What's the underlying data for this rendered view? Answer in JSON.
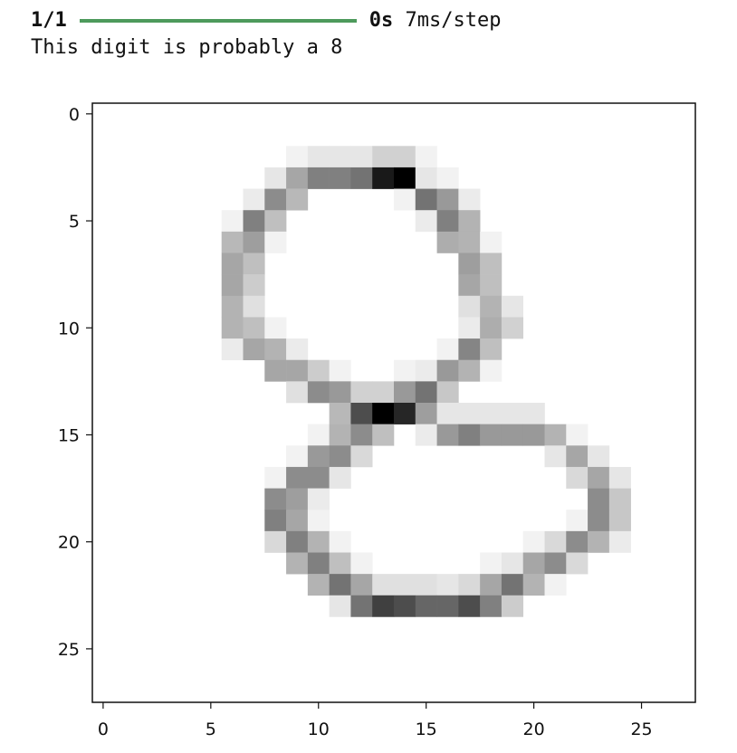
{
  "console": {
    "step_count": "1/1",
    "progress": 1.0,
    "elapsed": "0s",
    "step_time": "7ms/step",
    "message": "This digit is probably a 8"
  },
  "chart_data": {
    "type": "heatmap",
    "colormap": "gray_r",
    "xlim": [
      -0.5,
      27.5
    ],
    "ylim": [
      27.5,
      -0.5
    ],
    "xticks": [
      0,
      5,
      10,
      15,
      20,
      25
    ],
    "yticks": [
      0,
      5,
      10,
      15,
      20,
      25
    ],
    "xtick_labels": [
      "0",
      "5",
      "10",
      "15",
      "20",
      "25"
    ],
    "ytick_labels": [
      "0",
      "5",
      "10",
      "15",
      "20",
      "25"
    ],
    "xlabel": "",
    "ylabel": "",
    "title": "",
    "grid": false,
    "rows": 28,
    "cols": 28,
    "pixels": [
      {
        "r": 2,
        "c": 9,
        "v": 0.05
      },
      {
        "r": 2,
        "c": 10,
        "v": 0.1
      },
      {
        "r": 2,
        "c": 11,
        "v": 0.1
      },
      {
        "r": 2,
        "c": 12,
        "v": 0.1
      },
      {
        "r": 2,
        "c": 13,
        "v": 0.18
      },
      {
        "r": 2,
        "c": 14,
        "v": 0.18
      },
      {
        "r": 2,
        "c": 15,
        "v": 0.05
      },
      {
        "r": 3,
        "c": 8,
        "v": 0.1
      },
      {
        "r": 3,
        "c": 9,
        "v": 0.35
      },
      {
        "r": 3,
        "c": 10,
        "v": 0.5
      },
      {
        "r": 3,
        "c": 11,
        "v": 0.5
      },
      {
        "r": 3,
        "c": 12,
        "v": 0.55
      },
      {
        "r": 3,
        "c": 13,
        "v": 0.9
      },
      {
        "r": 3,
        "c": 14,
        "v": 1.0
      },
      {
        "r": 3,
        "c": 15,
        "v": 0.1
      },
      {
        "r": 3,
        "c": 16,
        "v": 0.05
      },
      {
        "r": 4,
        "c": 7,
        "v": 0.08
      },
      {
        "r": 4,
        "c": 8,
        "v": 0.45
      },
      {
        "r": 4,
        "c": 9,
        "v": 0.28
      },
      {
        "r": 4,
        "c": 14,
        "v": 0.05
      },
      {
        "r": 4,
        "c": 15,
        "v": 0.55
      },
      {
        "r": 4,
        "c": 16,
        "v": 0.4
      },
      {
        "r": 4,
        "c": 17,
        "v": 0.08
      },
      {
        "r": 5,
        "c": 6,
        "v": 0.05
      },
      {
        "r": 5,
        "c": 7,
        "v": 0.5
      },
      {
        "r": 5,
        "c": 8,
        "v": 0.25
      },
      {
        "r": 5,
        "c": 15,
        "v": 0.08
      },
      {
        "r": 5,
        "c": 16,
        "v": 0.5
      },
      {
        "r": 5,
        "c": 17,
        "v": 0.3
      },
      {
        "r": 6,
        "c": 6,
        "v": 0.28
      },
      {
        "r": 6,
        "c": 7,
        "v": 0.38
      },
      {
        "r": 6,
        "c": 8,
        "v": 0.05
      },
      {
        "r": 6,
        "c": 16,
        "v": 0.32
      },
      {
        "r": 6,
        "c": 17,
        "v": 0.3
      },
      {
        "r": 6,
        "c": 18,
        "v": 0.05
      },
      {
        "r": 7,
        "c": 6,
        "v": 0.35
      },
      {
        "r": 7,
        "c": 7,
        "v": 0.25
      },
      {
        "r": 7,
        "c": 17,
        "v": 0.38
      },
      {
        "r": 7,
        "c": 18,
        "v": 0.25
      },
      {
        "r": 8,
        "c": 6,
        "v": 0.35
      },
      {
        "r": 8,
        "c": 7,
        "v": 0.2
      },
      {
        "r": 8,
        "c": 17,
        "v": 0.35
      },
      {
        "r": 8,
        "c": 18,
        "v": 0.25
      },
      {
        "r": 9,
        "c": 6,
        "v": 0.3
      },
      {
        "r": 9,
        "c": 7,
        "v": 0.12
      },
      {
        "r": 9,
        "c": 17,
        "v": 0.12
      },
      {
        "r": 9,
        "c": 18,
        "v": 0.3
      },
      {
        "r": 9,
        "c": 19,
        "v": 0.1
      },
      {
        "r": 10,
        "c": 6,
        "v": 0.3
      },
      {
        "r": 10,
        "c": 7,
        "v": 0.25
      },
      {
        "r": 10,
        "c": 8,
        "v": 0.05
      },
      {
        "r": 10,
        "c": 17,
        "v": 0.08
      },
      {
        "r": 10,
        "c": 18,
        "v": 0.32
      },
      {
        "r": 10,
        "c": 19,
        "v": 0.18
      },
      {
        "r": 11,
        "c": 6,
        "v": 0.08
      },
      {
        "r": 11,
        "c": 7,
        "v": 0.35
      },
      {
        "r": 11,
        "c": 8,
        "v": 0.3
      },
      {
        "r": 11,
        "c": 9,
        "v": 0.08
      },
      {
        "r": 11,
        "c": 16,
        "v": 0.05
      },
      {
        "r": 11,
        "c": 17,
        "v": 0.48
      },
      {
        "r": 11,
        "c": 18,
        "v": 0.25
      },
      {
        "r": 12,
        "c": 8,
        "v": 0.35
      },
      {
        "r": 12,
        "c": 9,
        "v": 0.35
      },
      {
        "r": 12,
        "c": 10,
        "v": 0.2
      },
      {
        "r": 12,
        "c": 11,
        "v": 0.05
      },
      {
        "r": 12,
        "c": 14,
        "v": 0.05
      },
      {
        "r": 12,
        "c": 15,
        "v": 0.08
      },
      {
        "r": 12,
        "c": 16,
        "v": 0.4
      },
      {
        "r": 12,
        "c": 17,
        "v": 0.3
      },
      {
        "r": 12,
        "c": 18,
        "v": 0.05
      },
      {
        "r": 13,
        "c": 9,
        "v": 0.12
      },
      {
        "r": 13,
        "c": 10,
        "v": 0.45
      },
      {
        "r": 13,
        "c": 11,
        "v": 0.4
      },
      {
        "r": 13,
        "c": 12,
        "v": 0.18
      },
      {
        "r": 13,
        "c": 13,
        "v": 0.18
      },
      {
        "r": 13,
        "c": 14,
        "v": 0.4
      },
      {
        "r": 13,
        "c": 15,
        "v": 0.55
      },
      {
        "r": 13,
        "c": 16,
        "v": 0.22
      },
      {
        "r": 14,
        "c": 11,
        "v": 0.28
      },
      {
        "r": 14,
        "c": 12,
        "v": 0.7
      },
      {
        "r": 14,
        "c": 13,
        "v": 1.0
      },
      {
        "r": 14,
        "c": 14,
        "v": 0.85
      },
      {
        "r": 14,
        "c": 15,
        "v": 0.38
      },
      {
        "r": 14,
        "c": 16,
        "v": 0.1
      },
      {
        "r": 14,
        "c": 17,
        "v": 0.1
      },
      {
        "r": 14,
        "c": 18,
        "v": 0.1
      },
      {
        "r": 14,
        "c": 19,
        "v": 0.1
      },
      {
        "r": 14,
        "c": 20,
        "v": 0.1
      },
      {
        "r": 15,
        "c": 10,
        "v": 0.05
      },
      {
        "r": 15,
        "c": 11,
        "v": 0.3
      },
      {
        "r": 15,
        "c": 12,
        "v": 0.45
      },
      {
        "r": 15,
        "c": 13,
        "v": 0.25
      },
      {
        "r": 15,
        "c": 15,
        "v": 0.08
      },
      {
        "r": 15,
        "c": 16,
        "v": 0.4
      },
      {
        "r": 15,
        "c": 17,
        "v": 0.5
      },
      {
        "r": 15,
        "c": 18,
        "v": 0.4
      },
      {
        "r": 15,
        "c": 19,
        "v": 0.4
      },
      {
        "r": 15,
        "c": 20,
        "v": 0.4
      },
      {
        "r": 15,
        "c": 21,
        "v": 0.3
      },
      {
        "r": 15,
        "c": 22,
        "v": 0.05
      },
      {
        "r": 16,
        "c": 9,
        "v": 0.05
      },
      {
        "r": 16,
        "c": 10,
        "v": 0.4
      },
      {
        "r": 16,
        "c": 11,
        "v": 0.45
      },
      {
        "r": 16,
        "c": 12,
        "v": 0.15
      },
      {
        "r": 16,
        "c": 21,
        "v": 0.1
      },
      {
        "r": 16,
        "c": 22,
        "v": 0.35
      },
      {
        "r": 16,
        "c": 23,
        "v": 0.1
      },
      {
        "r": 17,
        "c": 8,
        "v": 0.05
      },
      {
        "r": 17,
        "c": 9,
        "v": 0.45
      },
      {
        "r": 17,
        "c": 10,
        "v": 0.45
      },
      {
        "r": 17,
        "c": 11,
        "v": 0.1
      },
      {
        "r": 17,
        "c": 22,
        "v": 0.15
      },
      {
        "r": 17,
        "c": 23,
        "v": 0.35
      },
      {
        "r": 17,
        "c": 24,
        "v": 0.1
      },
      {
        "r": 18,
        "c": 8,
        "v": 0.45
      },
      {
        "r": 18,
        "c": 9,
        "v": 0.38
      },
      {
        "r": 18,
        "c": 10,
        "v": 0.08
      },
      {
        "r": 18,
        "c": 23,
        "v": 0.45
      },
      {
        "r": 18,
        "c": 24,
        "v": 0.22
      },
      {
        "r": 19,
        "c": 8,
        "v": 0.5
      },
      {
        "r": 19,
        "c": 9,
        "v": 0.35
      },
      {
        "r": 19,
        "c": 10,
        "v": 0.05
      },
      {
        "r": 19,
        "c": 22,
        "v": 0.05
      },
      {
        "r": 19,
        "c": 23,
        "v": 0.45
      },
      {
        "r": 19,
        "c": 24,
        "v": 0.22
      },
      {
        "r": 20,
        "c": 8,
        "v": 0.15
      },
      {
        "r": 20,
        "c": 9,
        "v": 0.5
      },
      {
        "r": 20,
        "c": 10,
        "v": 0.3
      },
      {
        "r": 20,
        "c": 11,
        "v": 0.05
      },
      {
        "r": 20,
        "c": 20,
        "v": 0.05
      },
      {
        "r": 20,
        "c": 21,
        "v": 0.15
      },
      {
        "r": 20,
        "c": 22,
        "v": 0.45
      },
      {
        "r": 20,
        "c": 23,
        "v": 0.3
      },
      {
        "r": 20,
        "c": 24,
        "v": 0.08
      },
      {
        "r": 21,
        "c": 9,
        "v": 0.3
      },
      {
        "r": 21,
        "c": 10,
        "v": 0.5
      },
      {
        "r": 21,
        "c": 11,
        "v": 0.25
      },
      {
        "r": 21,
        "c": 12,
        "v": 0.05
      },
      {
        "r": 21,
        "c": 18,
        "v": 0.05
      },
      {
        "r": 21,
        "c": 19,
        "v": 0.1
      },
      {
        "r": 21,
        "c": 20,
        "v": 0.35
      },
      {
        "r": 21,
        "c": 21,
        "v": 0.45
      },
      {
        "r": 21,
        "c": 22,
        "v": 0.15
      },
      {
        "r": 22,
        "c": 10,
        "v": 0.3
      },
      {
        "r": 22,
        "c": 11,
        "v": 0.55
      },
      {
        "r": 22,
        "c": 12,
        "v": 0.35
      },
      {
        "r": 22,
        "c": 13,
        "v": 0.12
      },
      {
        "r": 22,
        "c": 14,
        "v": 0.12
      },
      {
        "r": 22,
        "c": 15,
        "v": 0.12
      },
      {
        "r": 22,
        "c": 16,
        "v": 0.1
      },
      {
        "r": 22,
        "c": 17,
        "v": 0.15
      },
      {
        "r": 22,
        "c": 18,
        "v": 0.35
      },
      {
        "r": 22,
        "c": 19,
        "v": 0.55
      },
      {
        "r": 22,
        "c": 20,
        "v": 0.3
      },
      {
        "r": 22,
        "c": 21,
        "v": 0.05
      },
      {
        "r": 23,
        "c": 11,
        "v": 0.1
      },
      {
        "r": 23,
        "c": 12,
        "v": 0.55
      },
      {
        "r": 23,
        "c": 13,
        "v": 0.75
      },
      {
        "r": 23,
        "c": 14,
        "v": 0.7
      },
      {
        "r": 23,
        "c": 15,
        "v": 0.6
      },
      {
        "r": 23,
        "c": 16,
        "v": 0.6
      },
      {
        "r": 23,
        "c": 17,
        "v": 0.7
      },
      {
        "r": 23,
        "c": 18,
        "v": 0.5
      },
      {
        "r": 23,
        "c": 19,
        "v": 0.2
      }
    ]
  }
}
